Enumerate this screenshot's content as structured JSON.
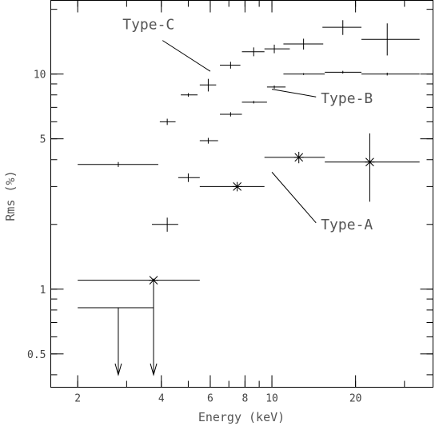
{
  "chart_data": {
    "type": "scatter",
    "title": "",
    "xlabel": "Energy (keV)",
    "ylabel": "Rms (%)",
    "xscale": "log",
    "yscale": "log",
    "xlim": [
      1.6,
      38
    ],
    "ylim": [
      0.35,
      22
    ],
    "x_ticks": [
      2,
      4,
      6,
      8,
      10,
      20
    ],
    "x_tick_labels": [
      "2",
      "4",
      "6",
      "8",
      "10",
      "20"
    ],
    "y_ticks": [
      0.5,
      1,
      5,
      10
    ],
    "y_tick_labels": [
      "0.5",
      "1",
      "5",
      "10"
    ],
    "grid": false,
    "series": [
      {
        "name": "Type-C",
        "marker": "plus",
        "points": [
          {
            "x": 2.8,
            "xerr": [
              2.0,
              3.9
            ],
            "y": 3.8,
            "yerr": [
              3.7,
              3.9
            ]
          },
          {
            "x": 4.2,
            "xerr": [
              3.95,
              4.5
            ],
            "y": 6.0,
            "yerr": [
              5.8,
              6.2
            ]
          },
          {
            "x": 5.0,
            "xerr": [
              4.7,
              5.4
            ],
            "y": 8.0,
            "yerr": [
              7.85,
              8.15
            ]
          },
          {
            "x": 5.9,
            "xerr": [
              5.5,
              6.3
            ],
            "y": 8.9,
            "yerr": [
              8.3,
              9.5
            ]
          },
          {
            "x": 7.1,
            "xerr": [
              6.5,
              7.7
            ],
            "y": 11.0,
            "yerr": [
              10.6,
              11.4
            ]
          },
          {
            "x": 8.6,
            "xerr": [
              7.8,
              9.4
            ],
            "y": 12.7,
            "yerr": [
              12.1,
              13.3
            ]
          },
          {
            "x": 10.2,
            "xerr": [
              9.4,
              11.6
            ],
            "y": 13.1,
            "yerr": [
              12.5,
              13.7
            ]
          },
          {
            "x": 13.0,
            "xerr": [
              11.0,
              15.3
            ],
            "y": 13.8,
            "yerr": [
              13.0,
              14.6
            ]
          },
          {
            "x": 18.0,
            "xerr": [
              15.2,
              21.0
            ],
            "y": 16.5,
            "yerr": [
              15.2,
              17.8
            ]
          },
          {
            "x": 26.0,
            "xerr": [
              21.0,
              34.0
            ],
            "y": 14.5,
            "yerr": [
              12.2,
              17.2
            ]
          }
        ]
      },
      {
        "name": "Type-B",
        "marker": "plus",
        "points": [
          {
            "x": 4.2,
            "xerr": [
              3.7,
              4.6
            ],
            "y": 2.0,
            "yerr": [
              1.85,
              2.15
            ]
          },
          {
            "x": 5.0,
            "xerr": [
              4.6,
              5.5
            ],
            "y": 3.3,
            "yerr": [
              3.15,
              3.45
            ]
          },
          {
            "x": 5.9,
            "xerr": [
              5.5,
              6.4
            ],
            "y": 4.9,
            "yerr": [
              4.75,
              5.05
            ]
          },
          {
            "x": 7.1,
            "xerr": [
              6.5,
              7.8
            ],
            "y": 6.5,
            "yerr": [
              6.35,
              6.65
            ]
          },
          {
            "x": 8.6,
            "xerr": [
              7.8,
              9.6
            ],
            "y": 7.4,
            "yerr": [
              7.3,
              7.5
            ]
          },
          {
            "x": 10.2,
            "xerr": [
              9.6,
              11.2
            ],
            "y": 8.7,
            "yerr": [
              8.55,
              8.85
            ]
          },
          {
            "x": 13.0,
            "xerr": [
              11.0,
              15.5
            ],
            "y": 10.0,
            "yerr": [
              9.9,
              10.1
            ]
          },
          {
            "x": 18.0,
            "xerr": [
              15.5,
              21.0
            ],
            "y": 10.2,
            "yerr": [
              10.05,
              10.35
            ]
          },
          {
            "x": 26.0,
            "xerr": [
              21.0,
              34.0
            ],
            "y": 10.0,
            "yerr": [
              9.85,
              10.15
            ]
          }
        ]
      },
      {
        "name": "Type-A",
        "marker": "star",
        "points": [
          {
            "x": 3.75,
            "xerr": [
              2.0,
              5.5
            ],
            "y": 1.1,
            "yerr": [
              1.08,
              1.12
            ]
          },
          {
            "x": 7.5,
            "xerr": [
              5.5,
              9.4
            ],
            "y": 3.0,
            "yerr": [
              2.85,
              3.15
            ]
          },
          {
            "x": 12.5,
            "xerr": [
              9.4,
              15.5
            ],
            "y": 4.1,
            "yerr": [
              3.85,
              4.35
            ]
          },
          {
            "x": 22.5,
            "xerr": [
              15.5,
              34.0
            ],
            "y": 3.9,
            "yerr": [
              2.55,
              5.3
            ]
          }
        ]
      }
    ],
    "upper_limits": [
      {
        "x": 2.8,
        "xerr": [
          2.0,
          3.75
        ],
        "y": 0.82,
        "arrow_to": 0.4
      },
      {
        "x": 3.75,
        "xerr": [
          3.75,
          3.75
        ],
        "y": 1.1,
        "arrow_to": 0.4
      }
    ],
    "annotations": [
      {
        "text": "Type-C",
        "x": 2.9,
        "y": 17.0,
        "point_x": 6.0,
        "point_y": 10.3
      },
      {
        "text": "Type-B",
        "x": 15.0,
        "y": 7.7,
        "point_x": 10.0,
        "point_y": 8.5
      },
      {
        "text": "Type-A",
        "x": 15.0,
        "y": 2.0,
        "point_x": 10.0,
        "point_y": 3.5
      }
    ]
  }
}
